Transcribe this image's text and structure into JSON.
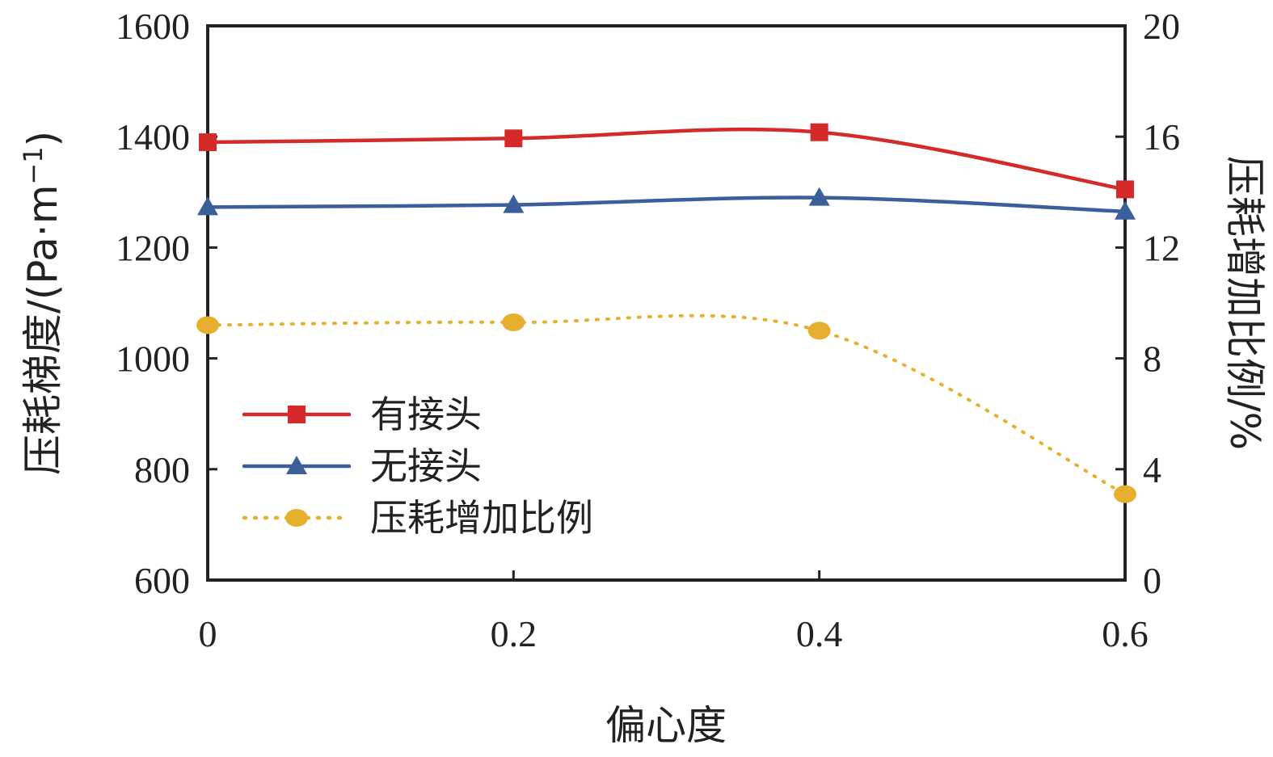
{
  "chart_data": {
    "type": "line",
    "x": [
      0,
      0.2,
      0.4,
      0.6
    ],
    "xlabel": "偏心度",
    "ylabel": "压耗梯度/(Pa·m",
    "ylabel_sup": "−1",
    "ylabel_close": ")",
    "y2label": "压耗增加比例/%",
    "xlim": [
      0,
      0.6
    ],
    "ylim": [
      600,
      1600
    ],
    "y2lim": [
      0,
      20
    ],
    "xticks": [
      "0",
      "0.2",
      "0.4",
      "0.6"
    ],
    "yticks": [
      "600",
      "800",
      "1000",
      "1200",
      "1400",
      "1600"
    ],
    "y2ticks": [
      "0",
      "4",
      "8",
      "12",
      "16",
      "20"
    ],
    "legend_position": "lower-left",
    "grid": false,
    "series": [
      {
        "name": "有接头",
        "axis": "left",
        "marker": "square",
        "color": "#d42a2a",
        "dash": "solid",
        "values": [
          1390,
          1397,
          1408,
          1305
        ]
      },
      {
        "name": "无接头",
        "axis": "left",
        "marker": "triangle",
        "color": "#3a5f9a",
        "dash": "solid",
        "values": [
          1273,
          1277,
          1290,
          1265
        ]
      },
      {
        "name": "压耗增加比例",
        "axis": "right",
        "marker": "circle",
        "color": "#e6b02e",
        "dash": "dotted",
        "values": [
          9.2,
          9.3,
          9.0,
          3.1
        ]
      }
    ]
  }
}
